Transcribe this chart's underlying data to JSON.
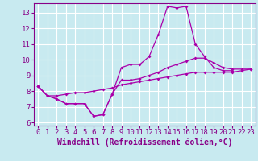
{
  "xlabel": "Windchill (Refroidissement éolien,°C)",
  "background_color": "#c8eaf0",
  "grid_color": "#ffffff",
  "line_color": "#aa00aa",
  "x_hours": [
    0,
    1,
    2,
    3,
    4,
    5,
    6,
    7,
    8,
    9,
    10,
    11,
    12,
    13,
    14,
    15,
    16,
    17,
    18,
    19,
    20,
    21,
    22,
    23
  ],
  "series1": [
    8.3,
    7.7,
    7.5,
    7.2,
    7.2,
    7.2,
    6.4,
    6.5,
    7.8,
    9.5,
    9.7,
    9.7,
    10.2,
    11.6,
    13.4,
    13.3,
    13.4,
    11.0,
    10.2,
    9.5,
    9.3,
    9.3,
    null,
    null
  ],
  "series2": [
    8.3,
    7.7,
    7.5,
    7.2,
    7.2,
    7.2,
    6.4,
    6.5,
    7.8,
    8.7,
    8.7,
    8.8,
    9.0,
    9.2,
    9.5,
    9.7,
    9.9,
    10.1,
    10.1,
    9.8,
    9.5,
    9.4,
    9.4,
    9.4
  ],
  "series3": [
    8.3,
    7.7,
    7.7,
    7.8,
    7.9,
    7.9,
    8.0,
    8.1,
    8.2,
    8.4,
    8.5,
    8.6,
    8.7,
    8.8,
    8.9,
    9.0,
    9.1,
    9.2,
    9.2,
    9.2,
    9.2,
    9.2,
    9.3,
    9.4
  ],
  "ylim": [
    5.8,
    13.6
  ],
  "yticks": [
    6,
    7,
    8,
    9,
    10,
    11,
    12,
    13
  ],
  "xlim": [
    -0.5,
    23.5
  ],
  "xticks": [
    0,
    1,
    2,
    3,
    4,
    5,
    6,
    7,
    8,
    9,
    10,
    11,
    12,
    13,
    14,
    15,
    16,
    17,
    18,
    19,
    20,
    21,
    22,
    23
  ],
  "font_color": "#880088",
  "font_family": "monospace",
  "tick_fontsize": 6.5,
  "xlabel_fontsize": 7.0,
  "marker_size": 2.0,
  "line_width": 0.9
}
